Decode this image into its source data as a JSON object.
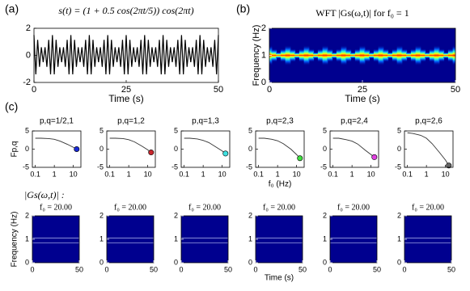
{
  "annotation": "|Gs(ω,t)| :",
  "chart_data": [
    {
      "type": "line",
      "label": "(a)",
      "title": "s(t) = (1 + 0.5 cos(2πt/5)) cos(2πt)",
      "xlabel": "Time (s)",
      "color": "#000000",
      "x": [
        0,
        0.5,
        1,
        1.5,
        2,
        2.5,
        3,
        3.5,
        4,
        4.5,
        5,
        5.5,
        6,
        6.5,
        7,
        7.5,
        8,
        8.5,
        9,
        9.5,
        10,
        10.5,
        11,
        11.5,
        12,
        12.5,
        13,
        13.5,
        14,
        14.5,
        15,
        15.5,
        16,
        16.5,
        17,
        17.5,
        18,
        18.5,
        19,
        19.5,
        20,
        20.5,
        21,
        21.5,
        22,
        22.5,
        23,
        23.5,
        24,
        24.5,
        25,
        25.5,
        26,
        26.5,
        27,
        27.5,
        28,
        28.5,
        29,
        29.5,
        30,
        30.5,
        31,
        31.5,
        32,
        32.5,
        33,
        33.5,
        34,
        34.5,
        35,
        35.5,
        36,
        36.5,
        37,
        37.5,
        38,
        38.5,
        39,
        39.5,
        40,
        40.5,
        41,
        41.5,
        42,
        42.5,
        43,
        43.5,
        44,
        44.5,
        45,
        45.5,
        46,
        46.5,
        47,
        47.5,
        48,
        48.5,
        49,
        49.5,
        50
      ],
      "values": [
        1.5,
        -1.4,
        1.15,
        -0.85,
        0.6,
        -0.5,
        0.6,
        -0.85,
        1.15,
        -1.4,
        1.5,
        -1.4,
        1.15,
        -0.85,
        0.6,
        -0.5,
        0.6,
        -0.85,
        1.15,
        -1.4,
        1.5,
        -1.4,
        1.15,
        -0.85,
        0.6,
        -0.5,
        0.6,
        -0.85,
        1.15,
        -1.4,
        1.5,
        -1.4,
        1.15,
        -0.85,
        0.6,
        -0.5,
        0.6,
        -0.85,
        1.15,
        -1.4,
        1.5,
        -1.4,
        1.15,
        -0.85,
        0.6,
        -0.5,
        0.6,
        -0.85,
        1.15,
        -1.4,
        1.5,
        -1.4,
        1.15,
        -0.85,
        0.6,
        -0.5,
        0.6,
        -0.85,
        1.15,
        -1.4,
        1.5,
        -1.4,
        1.15,
        -0.85,
        0.6,
        -0.5,
        0.6,
        -0.85,
        1.15,
        -1.4,
        1.5,
        -1.4,
        1.15,
        -0.85,
        0.6,
        -0.5,
        0.6,
        -0.85,
        1.15,
        -1.4,
        1.5,
        -1.4,
        1.15,
        -0.85,
        0.6,
        -0.5,
        0.6,
        -0.85,
        1.15,
        -1.4,
        1.5,
        -1.4,
        1.15,
        -0.85,
        0.6,
        -0.5,
        0.6,
        -0.85,
        1.15,
        -1.4,
        1.5
      ],
      "xlim": [
        0,
        50
      ],
      "xticks": [
        0,
        25,
        50
      ],
      "ylim": [
        -2,
        2
      ],
      "yticks": [
        -2,
        0,
        2
      ]
    },
    {
      "type": "heatmap",
      "label": "(b)",
      "title": "WFT |Gs(ω,t)| for f₀ = 1",
      "xlabel": "Time (s)",
      "ylabel": "Frequency (Hz)",
      "ridge_frequency": 1,
      "x": [
        0,
        1.25,
        2.5,
        3.75,
        5,
        6.25,
        7.5,
        8.75,
        10,
        11.25,
        12.5,
        13.75,
        15,
        16.25,
        17.5,
        18.75,
        20,
        21.25,
        22.5,
        23.75,
        25,
        26.25,
        27.5,
        28.75,
        30,
        31.25,
        32.5,
        33.75,
        35,
        36.25,
        37.5,
        38.75,
        40,
        41.25,
        42.5,
        43.75,
        45,
        46.25,
        47.5,
        48.75,
        50
      ],
      "values": [
        1.5,
        1,
        0.5,
        1,
        1.5,
        1,
        0.5,
        1,
        1.5,
        1,
        0.5,
        1,
        1.5,
        1,
        0.5,
        1,
        1.5,
        1,
        0.5,
        1,
        1.5,
        1,
        0.5,
        1,
        1.5,
        1,
        0.5,
        1,
        1.5,
        1,
        0.5,
        1,
        1.5,
        1,
        0.5,
        1,
        1.5,
        1,
        0.5,
        1,
        1.5
      ],
      "xlim": [
        0,
        50
      ],
      "xticks": [
        0,
        25,
        50
      ],
      "ylim": [
        0,
        2
      ],
      "yticks": [
        0,
        1,
        2
      ]
    },
    {
      "type": "line",
      "label": "(c)",
      "title": "p,q=1/2,1",
      "ylabel": "Fp,q",
      "xscale": "log",
      "color": "#333333",
      "marker_color": "#1a2bd6",
      "x": [
        0.1,
        0.2,
        0.5,
        1,
        2,
        5,
        10,
        15
      ],
      "values": [
        3,
        3,
        2.9,
        2.7,
        2.2,
        1.3,
        0.5,
        0
      ],
      "xlim": [
        0.07,
        25
      ],
      "xticks": [
        0.1,
        1,
        10
      ],
      "ylim": [
        -5,
        5
      ],
      "yticks": [
        -5,
        0,
        5
      ]
    },
    {
      "type": "line",
      "title": "p,q=1,2",
      "xscale": "log",
      "color": "#333333",
      "marker_color": "#c8262c",
      "x": [
        0.1,
        0.2,
        0.5,
        1,
        2,
        5,
        10,
        15
      ],
      "values": [
        3,
        3,
        2.9,
        2.6,
        2,
        0.8,
        -0.2,
        -0.9
      ],
      "xlim": [
        0.07,
        25
      ],
      "xticks": [
        0.1,
        1,
        10
      ],
      "ylim": [
        -5,
        5
      ],
      "yticks": [
        -5,
        0,
        5
      ]
    },
    {
      "type": "line",
      "title": "p,q=1,3",
      "xscale": "log",
      "color": "#333333",
      "marker_color": "#3fe0e0",
      "x": [
        0.1,
        0.2,
        0.5,
        1,
        2,
        5,
        10,
        15
      ],
      "values": [
        3,
        3,
        2.8,
        2.4,
        1.8,
        0.5,
        -0.5,
        -1.2
      ],
      "xlim": [
        0.07,
        25
      ],
      "xticks": [
        0.1,
        1,
        10
      ],
      "ylim": [
        -5,
        5
      ],
      "yticks": [
        -5,
        0,
        5
      ]
    },
    {
      "type": "line",
      "title": "p,q=2,3",
      "xlabel": "f₀ (Hz)",
      "xscale": "log",
      "color": "#333333",
      "marker_color": "#3fe03f",
      "x": [
        0.1,
        0.2,
        0.5,
        1,
        2,
        5,
        10,
        15
      ],
      "values": [
        3,
        3,
        2.7,
        2.3,
        1.5,
        0,
        -1.5,
        -2.5
      ],
      "xlim": [
        0.07,
        25
      ],
      "xticks": [
        0.1,
        1,
        10
      ],
      "ylim": [
        -5,
        5
      ],
      "yticks": [
        -5,
        0,
        5
      ]
    },
    {
      "type": "line",
      "title": "p,q=2,4",
      "xscale": "log",
      "color": "#333333",
      "marker_color": "#e040e0",
      "x": [
        0.1,
        0.2,
        0.5,
        1,
        2,
        5,
        10,
        15
      ],
      "values": [
        3,
        3,
        2.6,
        2.2,
        1.4,
        -0.3,
        -1.5,
        -2.2
      ],
      "xlim": [
        0.07,
        25
      ],
      "xticks": [
        0.1,
        1,
        10
      ],
      "ylim": [
        -5,
        5
      ],
      "yticks": [
        -5,
        0,
        5
      ]
    },
    {
      "type": "line",
      "title": "p,q=2,6",
      "xscale": "log",
      "color": "#333333",
      "marker_color": "#666666",
      "x": [
        0.1,
        0.2,
        0.5,
        1,
        2,
        5,
        10,
        15
      ],
      "values": [
        4.5,
        4.3,
        3.8,
        3,
        1.5,
        -1,
        -3,
        -4.5
      ],
      "xlim": [
        0.07,
        25
      ],
      "xticks": [
        0.1,
        1,
        10
      ],
      "ylim": [
        -5,
        5
      ],
      "yticks": [
        -5,
        0,
        5
      ]
    },
    {
      "type": "heatmap",
      "title": "f₀ = 20.00",
      "ylabel": "Frequency (Hz)",
      "ridges": [
        0.85,
        1.05
      ],
      "xlim": [
        0,
        50
      ],
      "xticks": [
        0,
        50
      ],
      "ylim": [
        0,
        2
      ],
      "yticks": [
        0,
        1,
        2
      ]
    },
    {
      "type": "heatmap",
      "title": "f₀ = 20.00",
      "ridges": [
        0.85,
        1.05
      ],
      "xlim": [
        0,
        50
      ],
      "xticks": [
        0,
        50
      ],
      "ylim": [
        0,
        2
      ],
      "yticks": [
        0,
        1,
        2
      ]
    },
    {
      "type": "heatmap",
      "title": "f₀ = 20.00",
      "ridges": [
        0.85,
        1.05
      ],
      "xlim": [
        0,
        50
      ],
      "xticks": [
        0,
        50
      ],
      "ylim": [
        0,
        2
      ],
      "yticks": [
        0,
        1,
        2
      ]
    },
    {
      "type": "heatmap",
      "title": "f₀ = 20.00",
      "xlabel": "Time (s)",
      "ridges": [
        0.85,
        1.05
      ],
      "xlim": [
        0,
        50
      ],
      "xticks": [
        0,
        50
      ],
      "ylim": [
        0,
        2
      ],
      "yticks": [
        0,
        1,
        2
      ]
    },
    {
      "type": "heatmap",
      "title": "f₀ = 20.00",
      "ridges": [
        0.85,
        1.05
      ],
      "xlim": [
        0,
        50
      ],
      "xticks": [
        0,
        50
      ],
      "ylim": [
        0,
        2
      ],
      "yticks": [
        0,
        1,
        2
      ]
    },
    {
      "type": "heatmap",
      "title": "f₀ = 20.00",
      "ridges": [
        0.85,
        1.05
      ],
      "xlim": [
        0,
        50
      ],
      "xticks": [
        0,
        50
      ],
      "ylim": [
        0,
        2
      ],
      "yticks": [
        0,
        1,
        2
      ]
    }
  ]
}
